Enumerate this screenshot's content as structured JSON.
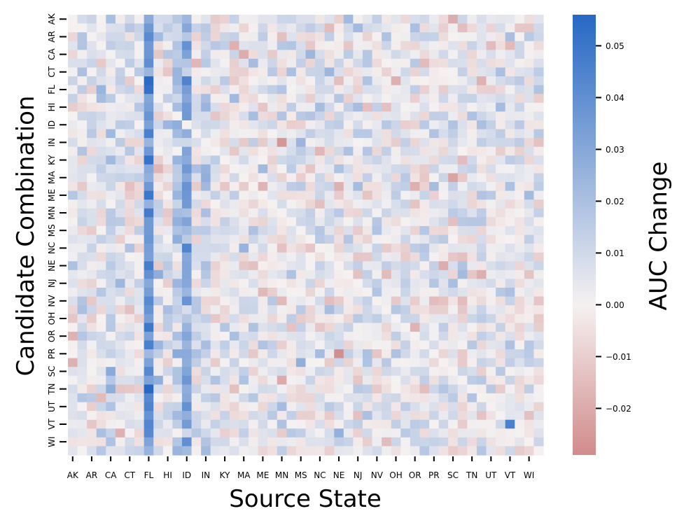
{
  "chart_data": {
    "type": "heatmap",
    "title": "",
    "xlabel": "Source State",
    "ylabel": "Candidate Combination",
    "colorbar_label": "AUC Change",
    "x_tick_labels": [
      "AK",
      "AR",
      "CA",
      "CT",
      "FL",
      "HI",
      "ID",
      "IN",
      "KY",
      "MA",
      "ME",
      "MN",
      "MS",
      "NC",
      "NE",
      "NJ",
      "NV",
      "OH",
      "OR",
      "PR",
      "SC",
      "TN",
      "UT",
      "VT",
      "WI"
    ],
    "y_tick_labels": [
      "AK",
      "AR",
      "CA",
      "CT",
      "FL",
      "HI",
      "ID",
      "IN",
      "KY",
      "MA",
      "ME",
      "MN",
      "MS",
      "NC",
      "NE",
      "NJ",
      "NV",
      "OH",
      "OR",
      "PR",
      "SC",
      "TN",
      "UT",
      "VT",
      "WI"
    ],
    "x_count": 50,
    "y_count": 50,
    "value_range": [
      -0.029,
      0.056
    ],
    "colorbar_ticks": [
      0.05,
      0.04,
      0.03,
      0.02,
      0.01,
      0.0,
      -0.01,
      -0.02
    ],
    "colorbar_tick_labels": [
      "0.05",
      "0.04",
      "0.03",
      "0.02",
      "0.01",
      "0.00",
      "−0.01",
      "−0.02"
    ],
    "colormap": {
      "negative": "#d18b8b",
      "zero": "#f5f1f1",
      "positive": "#2668c4"
    },
    "column_bias": {
      "FL": 0.038,
      "ID": 0.027,
      "CA": 0.01,
      "IN": 0.008
    },
    "notable_cells": [
      {
        "row": "FL",
        "col": "FL",
        "approx": 0.052
      },
      {
        "row": "TN",
        "col": "FL",
        "approx": 0.056
      },
      {
        "row": "MN",
        "col": "FL",
        "approx": 0.048
      },
      {
        "row": "IN",
        "col": "MN",
        "approx": -0.026
      },
      {
        "row": "PR",
        "col": "NE",
        "approx": -0.028
      },
      {
        "row": "MA",
        "col": "SC",
        "approx": -0.022
      },
      {
        "row": "VT",
        "col": "VT",
        "approx": 0.046
      }
    ]
  }
}
